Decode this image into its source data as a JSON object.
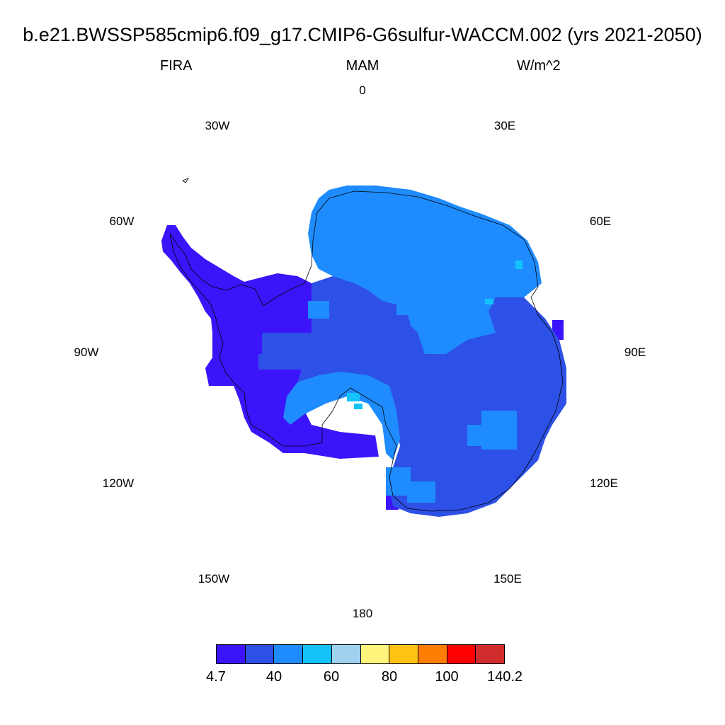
{
  "title": "b.e21.BWSSP585cmip6.f09_g17.CMIP6-G6sulfur-WACCM.002 (yrs 2021-2050)",
  "subtitle": {
    "left": "FIRA",
    "center": "MAM",
    "right": "W/m^2"
  },
  "longitude_labels": [
    "0",
    "30E",
    "60E",
    "90E",
    "120E",
    "150E",
    "180",
    "150W",
    "120W",
    "90W",
    "60W",
    "30W"
  ],
  "colorbar": {
    "colors": [
      "#3c14fa",
      "#2d50e6",
      "#1e8cff",
      "#14c3fa",
      "#a0d2f0",
      "#fff57d",
      "#ffc314",
      "#ff7d00",
      "#ff0000",
      "#d22d2d"
    ],
    "labels": [
      "4.7",
      "40",
      "60",
      "80",
      "100",
      "140.2"
    ]
  }
}
